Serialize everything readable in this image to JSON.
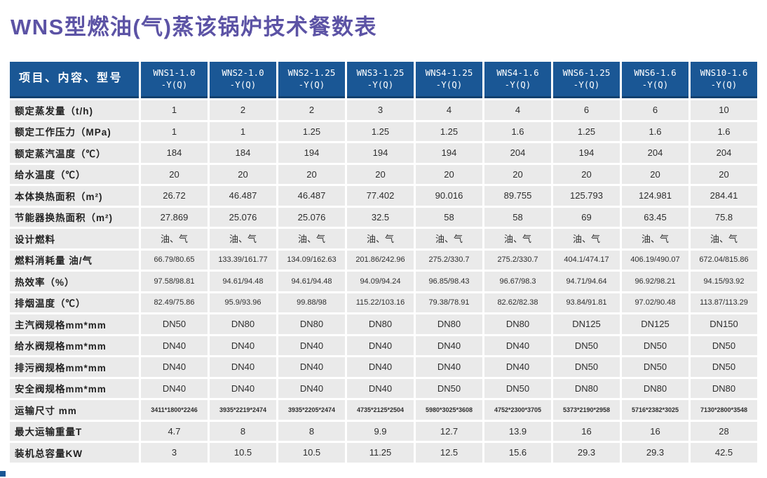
{
  "title": "WNS型燃油(气)蒸该锅炉技术餐数表",
  "colors": {
    "header_bg": "#1a5795",
    "header_border": "#11406f",
    "title_text": "#5c53a5",
    "cell_bg": "#eaeaea"
  },
  "table": {
    "corner_header": "项目、内容、型号",
    "models": [
      "WNS1-1.0\n-Y(Q)",
      "WNS2-1.0\n-Y(Q)",
      "WNS2-1.25\n-Y(Q)",
      "WNS3-1.25\n-Y(Q)",
      "WNS4-1.25\n-Y(Q)",
      "WNS4-1.6\n-Y(Q)",
      "WNS6-1.25\n-Y(Q)",
      "WNS6-1.6\n-Y(Q)",
      "WNS10-1.6\n-Y(Q)"
    ],
    "rows": [
      {
        "label": "额定蒸发量（t/h)",
        "values": [
          "1",
          "2",
          "2",
          "3",
          "4",
          "4",
          "6",
          "6",
          "10"
        ]
      },
      {
        "label": "额定工作压力（MPa)",
        "values": [
          "1",
          "1",
          "1.25",
          "1.25",
          "1.25",
          "1.6",
          "1.25",
          "1.6",
          "1.6"
        ]
      },
      {
        "label": "额定蒸汽温度（℃）",
        "values": [
          "184",
          "184",
          "194",
          "194",
          "194",
          "204",
          "194",
          "204",
          "204"
        ]
      },
      {
        "label": "给水温度（℃）",
        "values": [
          "20",
          "20",
          "20",
          "20",
          "20",
          "20",
          "20",
          "20",
          "20"
        ]
      },
      {
        "label": "本体换热面积（m²)",
        "values": [
          "26.72",
          "46.487",
          "46.487",
          "77.402",
          "90.016",
          "89.755",
          "125.793",
          "124.981",
          "284.41"
        ]
      },
      {
        "label": "节能器换热面积（m²)",
        "values": [
          "27.869",
          "25.076",
          "25.076",
          "32.5",
          "58",
          "58",
          "69",
          "63.45",
          "75.8"
        ]
      },
      {
        "label": "设计燃料",
        "values": [
          "油、气",
          "油、气",
          "油、气",
          "油、气",
          "油、气",
          "油、气",
          "油、气",
          "油、气",
          "油、气"
        ]
      },
      {
        "label": "燃料消耗量 油/气",
        "size": "small",
        "values": [
          "66.79/80.65",
          "133.39/161.77",
          "134.09/162.63",
          "201.86/242.96",
          "275.2/330.7",
          "275.2/330.7",
          "404.1/474.17",
          "406.19/490.07",
          "672.04/815.86"
        ]
      },
      {
        "label": "热效率（%）",
        "size": "small",
        "values": [
          "97.58/98.81",
          "94.61/94.48",
          "94.61/94.48",
          "94.09/94.24",
          "96.85/98.43",
          "96.67/98.3",
          "94.71/94.64",
          "96.92/98.21",
          "94.15/93.92"
        ]
      },
      {
        "label": "排烟温度（℃）",
        "size": "small",
        "values": [
          "82.49/75.86",
          "95.9/93.96",
          "99.88/98",
          "115.22/103.16",
          "79.38/78.91",
          "82.62/82.38",
          "93.84/91.81",
          "97.02/90.48",
          "113.87/113.29"
        ]
      },
      {
        "label": "主汽阀规格mm*mm",
        "values": [
          "DN50",
          "DN80",
          "DN80",
          "DN80",
          "DN80",
          "DN80",
          "DN125",
          "DN125",
          "DN150"
        ]
      },
      {
        "label": "给水阀规格mm*mm",
        "values": [
          "DN40",
          "DN40",
          "DN40",
          "DN40",
          "DN40",
          "DN40",
          "DN50",
          "DN50",
          "DN50"
        ]
      },
      {
        "label": "排污阀规格mm*mm",
        "values": [
          "DN40",
          "DN40",
          "DN40",
          "DN40",
          "DN40",
          "DN40",
          "DN50",
          "DN50",
          "DN50"
        ]
      },
      {
        "label": "安全阀规格mm*mm",
        "values": [
          "DN40",
          "DN40",
          "DN40",
          "DN40",
          "DN50",
          "DN50",
          "DN80",
          "DN80",
          "DN80"
        ]
      },
      {
        "label": "运输尺寸 mm",
        "size": "tiny",
        "values": [
          "3411*1800*2246",
          "3935*2219*2474",
          "3935*2205*2474",
          "4735*2125*2504",
          "5980*3025*3608",
          "4752*2300*3705",
          "5373*2190*2958",
          "5716*2382*3025",
          "7130*2800*3548"
        ]
      },
      {
        "label": "最大运输重量T",
        "values": [
          "4.7",
          "8",
          "8",
          "9.9",
          "12.7",
          "13.9",
          "16",
          "16",
          "28"
        ]
      },
      {
        "label": "装机总容量KW",
        "values": [
          "3",
          "10.5",
          "10.5",
          "11.25",
          "12.5",
          "15.6",
          "29.3",
          "29.3",
          "42.5"
        ]
      }
    ]
  }
}
